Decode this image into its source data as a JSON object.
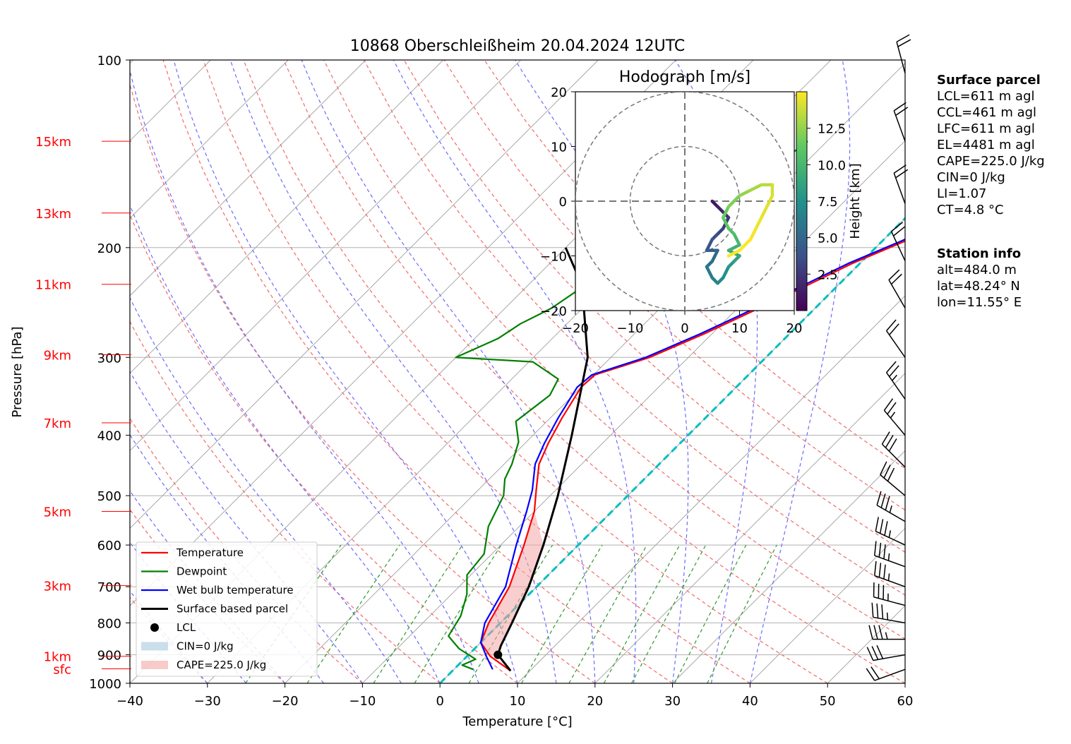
{
  "chart_data": {
    "type": "line",
    "title": "10868 Oberschleißheim 20.04.2024 12UTC",
    "xlabel": "Temperature [°C]",
    "ylabel": "Pressure [hPa]",
    "xlim": [
      -40,
      60
    ],
    "ylim": [
      1000,
      100
    ],
    "y_scale": "log",
    "x_ticks": [
      "−40",
      "−30",
      "−20",
      "−10",
      "0",
      "10",
      "20",
      "30",
      "40",
      "50",
      "60"
    ],
    "y_ticks": [
      "100",
      "200",
      "300",
      "400",
      "500",
      "600",
      "700",
      "800",
      "900",
      "1000"
    ],
    "height_labels": [
      {
        "label": "15km",
        "p": 135
      },
      {
        "label": "13km",
        "p": 176
      },
      {
        "label": "11km",
        "p": 229
      },
      {
        "label": "9km",
        "p": 297
      },
      {
        "label": "7km",
        "p": 382
      },
      {
        "label": "5km",
        "p": 530
      },
      {
        "label": "3km",
        "p": 697
      },
      {
        "label": "1km",
        "p": 905
      },
      {
        "label": "sfc",
        "p": 948
      }
    ],
    "series": [
      {
        "name": "Temperature",
        "color": "#ff0000",
        "points": [
          [
            7.5,
            955
          ],
          [
            3,
            905
          ],
          [
            0,
            860
          ],
          [
            -1.5,
            800
          ],
          [
            -3.5,
            700
          ],
          [
            -7,
            600
          ],
          [
            -10,
            530
          ],
          [
            -12.5,
            490
          ],
          [
            -15.5,
            445
          ],
          [
            -17,
            412
          ],
          [
            -18.5,
            375
          ],
          [
            -20,
            335
          ],
          [
            -19.8,
            320
          ],
          [
            -15,
            300
          ],
          [
            -11,
            275
          ],
          [
            -8,
            255
          ],
          [
            -4,
            230
          ],
          [
            -1,
            212
          ],
          [
            3,
            195
          ],
          [
            5,
            185
          ],
          [
            6,
            175
          ],
          [
            8,
            165
          ],
          [
            9,
            155
          ],
          [
            10.5,
            145
          ],
          [
            11.5,
            138
          ],
          [
            12,
            135
          ]
        ]
      },
      {
        "name": "Dewpoint",
        "color": "#008000",
        "points": [
          [
            2.5,
            950
          ],
          [
            0.5,
            935
          ],
          [
            1.5,
            915
          ],
          [
            -2,
            880
          ],
          [
            -5,
            840
          ],
          [
            -6,
            780
          ],
          [
            -8,
            720
          ],
          [
            -10.5,
            670
          ],
          [
            -11,
            620
          ],
          [
            -14,
            560
          ],
          [
            -16,
            500
          ],
          [
            -18,
            470
          ],
          [
            -19,
            445
          ],
          [
            -21,
            410
          ],
          [
            -24,
            380
          ],
          [
            -23,
            345
          ],
          [
            -24,
            325
          ],
          [
            -29.5,
            305
          ],
          [
            -40,
            300
          ],
          [
            -37,
            280
          ],
          [
            -36,
            265
          ],
          [
            -34,
            250
          ],
          [
            -33,
            235
          ],
          [
            -34,
            220
          ],
          [
            -33,
            205
          ],
          [
            -31,
            190
          ],
          [
            -28,
            175
          ],
          [
            -25,
            160
          ],
          [
            -23.5,
            148
          ],
          [
            -22.5,
            135
          ]
        ]
      },
      {
        "name": "Wet bulb temperature",
        "color": "#0000ff",
        "points": [
          [
            5,
            950
          ],
          [
            2.5,
            905
          ],
          [
            0,
            860
          ],
          [
            -2,
            800
          ],
          [
            -4,
            700
          ],
          [
            -8,
            600
          ],
          [
            -11,
            530
          ],
          [
            -13,
            490
          ],
          [
            -16,
            445
          ],
          [
            -17.5,
            412
          ],
          [
            -19,
            375
          ],
          [
            -20.5,
            335
          ],
          [
            -20.2,
            320
          ],
          [
            -15.5,
            300
          ],
          [
            -11.5,
            275
          ],
          [
            -8.5,
            255
          ],
          [
            -4.5,
            230
          ],
          [
            -1.5,
            212
          ],
          [
            2.5,
            195
          ],
          [
            4.5,
            185
          ],
          [
            5.5,
            175
          ],
          [
            7.5,
            165
          ],
          [
            8.5,
            155
          ],
          [
            10,
            145
          ],
          [
            11,
            138
          ],
          [
            11.5,
            135
          ]
        ]
      },
      {
        "name": "Surface based parcel",
        "color": "#000000",
        "points": [
          [
            7.5,
            955
          ],
          [
            3.8,
            900
          ],
          [
            3,
            870
          ],
          [
            1.5,
            800
          ],
          [
            -1,
            700
          ],
          [
            -4.5,
            600
          ],
          [
            -9,
            500
          ],
          [
            -15,
            400
          ],
          [
            -23,
            300
          ],
          [
            -33,
            230
          ],
          [
            -40,
            200
          ]
        ]
      }
    ],
    "lcl": {
      "label": "LCL",
      "t": 3.8,
      "p": 900
    },
    "legend": {
      "placement": "lower-left",
      "entries": [
        "Temperature",
        "Dewpoint",
        "Wet bulb temperature",
        "Surface based parcel",
        "LCL",
        "CIN=0 J/kg",
        "CAPE=225.0 J/kg"
      ]
    },
    "cape_color": "#f4a6a6",
    "cin_color": "#a8c8e0",
    "hodograph": {
      "title": "Hodograph [m/s]",
      "xlim": [
        -20,
        20
      ],
      "ylim": [
        -20,
        20
      ],
      "ticks": [
        "−20",
        "−10",
        "0",
        "10",
        "20"
      ],
      "ring_radii": [
        10,
        20
      ],
      "colorbar_label": "Height [km]",
      "colorbar_ticks": [
        "2.5",
        "5.0",
        "7.5",
        "10.0",
        "12.5"
      ],
      "points": [
        [
          5,
          0,
          0.5
        ],
        [
          6,
          -1,
          1.0
        ],
        [
          7,
          -2,
          1.5
        ],
        [
          8,
          -3,
          2.0
        ],
        [
          7,
          -5,
          2.5
        ],
        [
          6,
          -6,
          3.0
        ],
        [
          5,
          -7,
          3.5
        ],
        [
          4,
          -9,
          4.0
        ],
        [
          6,
          -9,
          4.5
        ],
        [
          5,
          -11,
          5.0
        ],
        [
          4,
          -12,
          5.5
        ],
        [
          5,
          -14,
          6.0
        ],
        [
          6,
          -15,
          6.5
        ],
        [
          7,
          -14,
          7.0
        ],
        [
          8,
          -12,
          7.5
        ],
        [
          9,
          -11,
          8.0
        ],
        [
          10,
          -10,
          8.5
        ],
        [
          8,
          -9,
          9.0
        ],
        [
          10,
          -8,
          9.5
        ],
        [
          9,
          -6,
          10.0
        ],
        [
          8,
          -5,
          10.5
        ],
        [
          7,
          -3,
          11.0
        ],
        [
          8,
          -1,
          11.5
        ],
        [
          10,
          1,
          12.0
        ],
        [
          12,
          2,
          12.5
        ],
        [
          14,
          3,
          13.0
        ],
        [
          16,
          3,
          13.5
        ],
        [
          16,
          1,
          14.0
        ],
        [
          15,
          -1,
          14.2
        ],
        [
          14,
          -3,
          14.4
        ],
        [
          13,
          -5,
          14.6
        ],
        [
          12,
          -7,
          14.8
        ],
        [
          10,
          -9,
          15.0
        ],
        [
          8,
          -10,
          15.0
        ]
      ]
    }
  },
  "info": {
    "surface_header": "Surface parcel",
    "surface_lines": [
      "LCL=611 m agl",
      "CCL=461 m agl",
      "LFC=611 m agl",
      "EL=4481 m agl",
      "CAPE=225.0 J/kg",
      "CIN=0 J/kg",
      "LI=1.07",
      "CT=4.8 °C"
    ],
    "station_header": "Station info",
    "station_lines": [
      "alt=484.0 m",
      "lat=48.24° N",
      "lon=11.55° E"
    ]
  },
  "wind_barbs": [
    {
      "p": 950,
      "dir": 250,
      "spd": 20
    },
    {
      "p": 900,
      "dir": 260,
      "spd": 30
    },
    {
      "p": 850,
      "dir": 270,
      "spd": 35
    },
    {
      "p": 800,
      "dir": 280,
      "spd": 35
    },
    {
      "p": 750,
      "dir": 285,
      "spd": 35
    },
    {
      "p": 700,
      "dir": 290,
      "spd": 35
    },
    {
      "p": 650,
      "dir": 290,
      "spd": 35
    },
    {
      "p": 600,
      "dir": 295,
      "spd": 35
    },
    {
      "p": 550,
      "dir": 300,
      "spd": 35
    },
    {
      "p": 500,
      "dir": 310,
      "spd": 30
    },
    {
      "p": 450,
      "dir": 315,
      "spd": 30
    },
    {
      "p": 400,
      "dir": 320,
      "spd": 25
    },
    {
      "p": 350,
      "dir": 325,
      "spd": 25
    },
    {
      "p": 300,
      "dir": 325,
      "spd": 20
    },
    {
      "p": 250,
      "dir": 330,
      "spd": 20
    },
    {
      "p": 210,
      "dir": 335,
      "spd": 20
    },
    {
      "p": 170,
      "dir": 340,
      "spd": 20
    },
    {
      "p": 135,
      "dir": 340,
      "spd": 20
    },
    {
      "p": 105,
      "dir": 345,
      "spd": 20
    }
  ]
}
